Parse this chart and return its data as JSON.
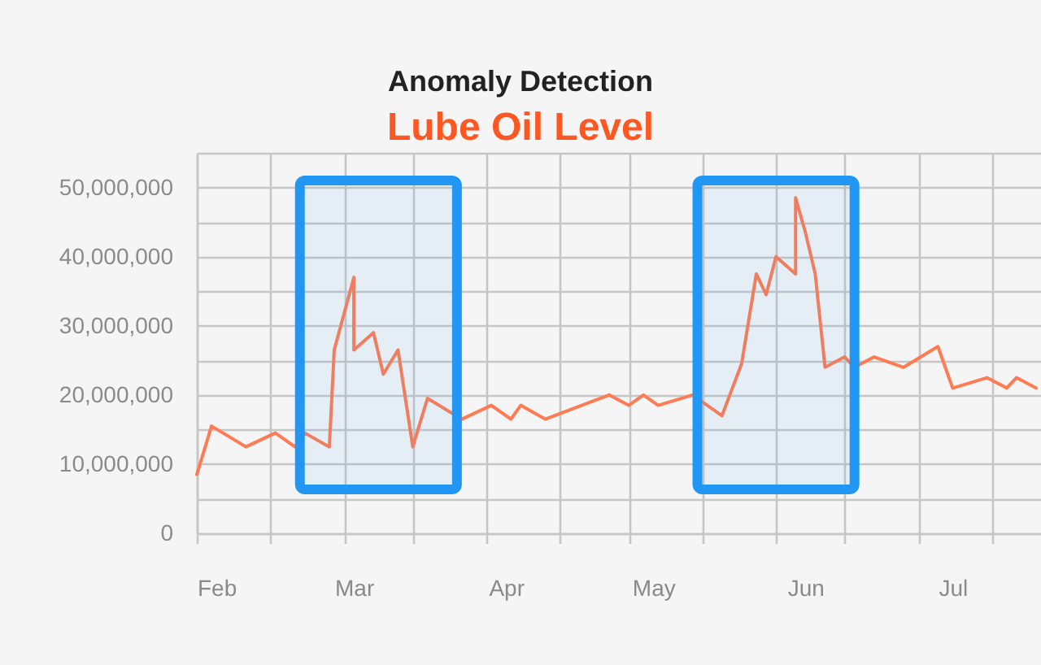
{
  "chart_data": {
    "type": "line",
    "title": "Anomaly Detection",
    "subtitle": "Lube Oil Level",
    "x": [
      "--01-28",
      "--01-31",
      "--02-07",
      "--02-13",
      "--02-17",
      "--02-19",
      "--02-24",
      "--02-25",
      "--03-01",
      "--03-01",
      "--03-05",
      "--03-07",
      "--03-10",
      "--03-13",
      "--03-16",
      "--03-23",
      "--03-29",
      "--04-02",
      "--04-04",
      "--04-09",
      "--04-22",
      "--04-26",
      "--04-29",
      "--05-02",
      "--05-09",
      "--05-15",
      "--05-19",
      "--05-22",
      "--05-24",
      "--05-26",
      "--05-30",
      "--05-30",
      "--06-01",
      "--06-03",
      "--06-05",
      "--06-09",
      "--06-11",
      "--06-15",
      "--06-21",
      "--06-28",
      "--07-01",
      "--07-08",
      "--07-12",
      "--07-14",
      "--07-18"
    ],
    "series": [
      {
        "color": "#ff7b54",
        "values": [
          8500000,
          15500000,
          12500000,
          14500000,
          12500000,
          14500000,
          12500000,
          26500000,
          37000000,
          26500000,
          29000000,
          23000000,
          26500000,
          12500000,
          19500000,
          16500000,
          18500000,
          16500000,
          18500000,
          16500000,
          20000000,
          18500000,
          20000000,
          18500000,
          20000000,
          17000000,
          24500000,
          37500000,
          34500000,
          40000000,
          37500000,
          48500000,
          43500000,
          37500000,
          24000000,
          25500000,
          24000000,
          25500000,
          24000000,
          27000000,
          21000000,
          22500000,
          21000000,
          22500000,
          21000000
        ]
      }
    ],
    "xlim": [
      "--01-28",
      "--07-19"
    ],
    "xticks": [
      {
        "value": "--01-28",
        "label": null
      },
      {
        "value": "--02-01",
        "label": "Feb"
      },
      {
        "value": "--02-12",
        "label": null
      },
      {
        "value": "--02-27",
        "label": null
      },
      {
        "value": "--03-01",
        "label": "Mar"
      },
      {
        "value": "--03-13",
        "label": null
      },
      {
        "value": "--03-28",
        "label": null
      },
      {
        "value": "--04-01",
        "label": "Apr"
      },
      {
        "value": "--04-12",
        "label": null
      },
      {
        "value": "--04-26",
        "label": null
      },
      {
        "value": "--05-01",
        "label": "May"
      },
      {
        "value": "--05-11",
        "label": null
      },
      {
        "value": "--05-26",
        "label": null
      },
      {
        "value": "--06-01",
        "label": "Jun"
      },
      {
        "value": "--06-09",
        "label": null
      },
      {
        "value": "--06-24",
        "label": null
      },
      {
        "value": "--07-01",
        "label": "Jul"
      },
      {
        "value": "--07-09",
        "label": null
      }
    ],
    "ylim": [
      0,
      55000000
    ],
    "yticks": [
      0,
      {
        "value": 5000000,
        "label": null
      },
      {
        "value": 10000000,
        "label": "10,000,000"
      },
      {
        "value": 15000000,
        "label": null
      },
      {
        "value": 20000000,
        "label": "20,000,000"
      },
      {
        "value": 25000000,
        "label": null
      },
      {
        "value": 30000000,
        "label": "30,000,000"
      },
      {
        "value": 35000000,
        "label": null
      },
      {
        "value": 40000000,
        "label": "40,000,000"
      },
      {
        "value": 45000000,
        "label": null
      },
      {
        "value": 50000000,
        "label": "50,000,000"
      },
      {
        "value": 55000000,
        "label": null
      }
    ],
    "grid": true,
    "bands": [
      {
        "axis": "x",
        "from": "--02-18",
        "to": "--03-22",
        "color": "#2196f3"
      },
      {
        "axis": "x",
        "from": "--05-10",
        "to": "--06-11",
        "color": "#2196f3"
      }
    ]
  }
}
